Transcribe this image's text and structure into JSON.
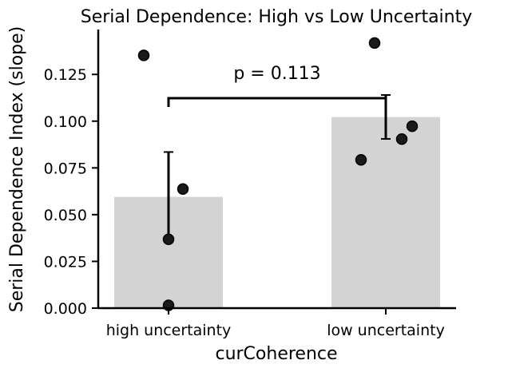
{
  "chart_data": {
    "type": "bar",
    "title": "Serial Dependence: High vs Low Uncertainty",
    "xlabel": "curCoherence",
    "ylabel": "Serial Dependence Index (slope)",
    "categories": [
      "high uncertainty",
      "low uncertainty"
    ],
    "values": [
      0.0595,
      0.1022
    ],
    "error_bars": [
      {
        "low": 0.0355,
        "high": 0.0835
      },
      {
        "low": 0.0905,
        "high": 0.114
      }
    ],
    "points": [
      [
        0.0015,
        0.0368,
        0.0637,
        0.1352
      ],
      [
        0.0793,
        0.0904,
        0.0973,
        0.1418
      ]
    ],
    "yticks": [
      0.0,
      0.025,
      0.05,
      0.075,
      0.1,
      0.125
    ],
    "ytick_labels": [
      "0.000",
      "0.025",
      "0.050",
      "0.075",
      "0.100",
      "0.125"
    ],
    "ylim": [
      0,
      0.149
    ],
    "annotation": "p = 0.113",
    "bar_color": "#d3d3d3",
    "point_color": "#1a1a1a",
    "zero_line": "dashed",
    "grid": false
  }
}
